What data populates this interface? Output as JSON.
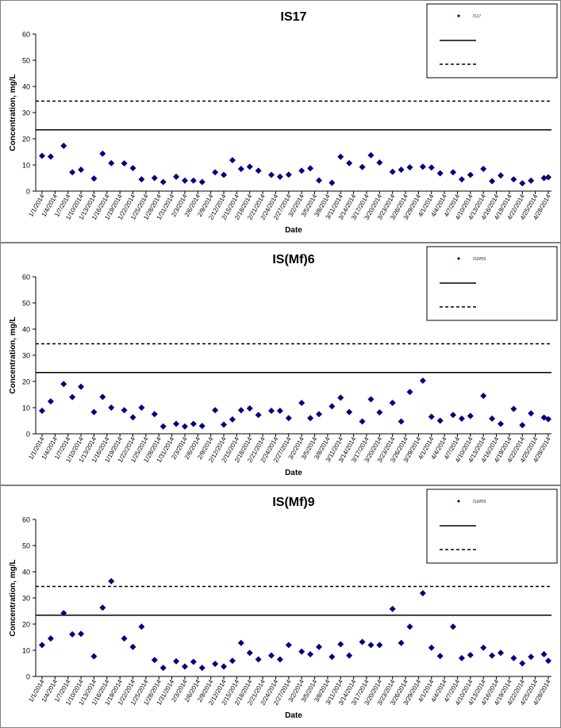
{
  "chart_data": [
    {
      "type": "scatter",
      "title": "IS17",
      "xlabel": "Date",
      "ylabel": "Concentration, mg/L",
      "ylim": [
        0,
        60
      ],
      "yticks": [
        0,
        10,
        20,
        30,
        40,
        50,
        60
      ],
      "xlim": [
        "1/1/2014",
        "4/28/2014"
      ],
      "xticks": [
        "1/1/2014",
        "1/4/2014",
        "1/7/2014",
        "1/10/2014",
        "1/13/2014",
        "1/16/2014",
        "1/19/2014",
        "1/22/2014",
        "1/25/2014",
        "1/28/2014",
        "1/31/2014",
        "2/3/2014",
        "2/6/2014",
        "2/9/2014",
        "2/12/2014",
        "2/15/2014",
        "2/18/2014",
        "2/21/2014",
        "2/24/2014",
        "2/27/2014",
        "3/2/2014",
        "3/5/2014",
        "3/8/2014",
        "3/11/2014",
        "3/14/2014",
        "3/17/2014",
        "3/20/2014",
        "3/23/2014",
        "3/26/2014",
        "3/29/2014",
        "4/1/2014",
        "4/4/2014",
        "4/7/2014",
        "4/10/2014",
        "4/13/2014",
        "4/16/2014",
        "4/19/2014",
        "4/22/2014",
        "4/25/2014",
        "4/28/2014"
      ],
      "series": [
        {
          "name": "IS17",
          "color": "#000080",
          "x": [
            "1/1/2014",
            "1/3/2014",
            "1/6/2014",
            "1/8/2014",
            "1/10/2014",
            "1/13/2014",
            "1/15/2014",
            "1/17/2014",
            "1/20/2014",
            "1/22/2014",
            "1/24/2014",
            "1/27/2014",
            "1/29/2014",
            "2/1/2014",
            "2/3/2014",
            "2/5/2014",
            "2/7/2014",
            "2/10/2014",
            "2/12/2014",
            "2/14/2014",
            "2/16/2014",
            "2/18/2014",
            "2/20/2014",
            "2/23/2014",
            "2/25/2014",
            "2/27/2014",
            "3/2/2014",
            "3/4/2014",
            "3/6/2014",
            "3/9/2014",
            "3/11/2014",
            "3/13/2014",
            "3/16/2014",
            "3/18/2014",
            "3/20/2014",
            "3/23/2014",
            "3/25/2014",
            "3/27/2014",
            "3/30/2014",
            "4/1/2014",
            "4/3/2014",
            "4/6/2014",
            "4/8/2014",
            "4/10/2014",
            "4/13/2014",
            "4/15/2014",
            "4/17/2014",
            "4/20/2014",
            "4/22/2014",
            "4/24/2014",
            "4/27/2014",
            "4/28/2014"
          ],
          "values": [
            13.5,
            13.2,
            17.3,
            7.2,
            8.2,
            4.8,
            14.3,
            10.7,
            10.6,
            8.8,
            4.5,
            5,
            3.5,
            5.5,
            4,
            4,
            3.5,
            7.2,
            6.2,
            11.8,
            8.5,
            9.3,
            7.8,
            6.2,
            5.5,
            6.3,
            7.8,
            8.7,
            4.1,
            3.2,
            13.1,
            10.7,
            9.2,
            13.7,
            10.9,
            7.4,
            8.2,
            9.1,
            9.3,
            9,
            6.8,
            7.2,
            4.5,
            6.2,
            8.5,
            3.8,
            6,
            4.5,
            3,
            4,
            5,
            5.3
          ]
        }
      ],
      "hlines": [
        {
          "value": 23.4,
          "style": "solid"
        },
        {
          "value": 34.4,
          "style": "dashed"
        }
      ]
    },
    {
      "type": "scatter",
      "title": "IS(Mf)6",
      "xlabel": "Date",
      "ylabel": "Concentration, mg/L",
      "ylim": [
        0,
        60
      ],
      "yticks": [
        0,
        10,
        20,
        30,
        40,
        50,
        60
      ],
      "xlim": [
        "1/1/2014",
        "4/28/2014"
      ],
      "xticks": [
        "1/1/2014",
        "1/4/2014",
        "1/7/2014",
        "1/10/2014",
        "1/13/2014",
        "1/16/2014",
        "1/19/2014",
        "1/22/2014",
        "1/25/2014",
        "1/28/2014",
        "1/31/2014",
        "2/3/2014",
        "2/6/2014",
        "2/9/2014",
        "2/12/2014",
        "2/15/2014",
        "2/18/2014",
        "2/21/2014",
        "2/24/2014",
        "2/27/2014",
        "3/2/2014",
        "3/5/2014",
        "3/8/2014",
        "3/11/2014",
        "3/14/2014",
        "3/17/2014",
        "3/20/2014",
        "3/23/2014",
        "3/26/2014",
        "3/29/2014",
        "4/1/2014",
        "4/4/2014",
        "4/7/2014",
        "4/10/2014",
        "4/13/2014",
        "4/16/2014",
        "4/19/2014",
        "4/22/2014",
        "4/25/2014",
        "4/28/2014"
      ],
      "series": [
        {
          "name": "IS(Mf)6",
          "color": "#000080",
          "x": [
            "1/1/2014",
            "1/3/2014",
            "1/6/2014",
            "1/8/2014",
            "1/10/2014",
            "1/13/2014",
            "1/15/2014",
            "1/17/2014",
            "1/20/2014",
            "1/22/2014",
            "1/24/2014",
            "1/27/2014",
            "1/29/2014",
            "2/1/2014",
            "2/3/2014",
            "2/5/2014",
            "2/7/2014",
            "2/10/2014",
            "2/12/2014",
            "2/14/2014",
            "2/16/2014",
            "2/18/2014",
            "2/20/2014",
            "2/23/2014",
            "2/25/2014",
            "2/27/2014",
            "3/2/2014",
            "3/4/2014",
            "3/6/2014",
            "3/9/2014",
            "3/11/2014",
            "3/13/2014",
            "3/16/2014",
            "3/18/2014",
            "3/20/2014",
            "3/23/2014",
            "3/25/2014",
            "3/27/2014",
            "3/30/2014",
            "4/1/2014",
            "4/3/2014",
            "4/6/2014",
            "4/8/2014",
            "4/10/2014",
            "4/13/2014",
            "4/15/2014",
            "4/17/2014",
            "4/20/2014",
            "4/22/2014",
            "4/24/2014",
            "4/27/2014",
            "4/28/2014"
          ],
          "values": [
            8.8,
            12.4,
            19,
            14,
            18,
            8.3,
            14.1,
            10,
            9,
            6.3,
            10,
            7.5,
            2.8,
            3.8,
            2.8,
            3.8,
            3,
            9,
            3.5,
            5.5,
            9,
            9.7,
            7.2,
            8.8,
            8.8,
            6,
            11.8,
            6,
            7.5,
            10.5,
            13.8,
            8.3,
            4.7,
            13.2,
            8.2,
            11.8,
            4.7,
            16,
            20.3,
            6.5,
            5,
            7.2,
            5.8,
            6.8,
            14.5,
            5.8,
            3.8,
            9.5,
            3.3,
            7.8,
            6.2,
            5.6
          ]
        }
      ],
      "hlines": [
        {
          "value": 23.4,
          "style": "solid"
        },
        {
          "value": 34.4,
          "style": "dashed"
        }
      ]
    },
    {
      "type": "scatter",
      "title": "IS(Mf)9",
      "xlabel": "Date",
      "ylabel": "Concentration, mg/L",
      "ylim": [
        0,
        60
      ],
      "yticks": [
        0,
        10,
        20,
        30,
        40,
        50,
        60
      ],
      "xlim": [
        "1/1/2014",
        "4/28/2014"
      ],
      "xticks": [
        "1/1/2014",
        "1/4/2014",
        "1/7/2014",
        "1/10/2014",
        "1/13/2014",
        "1/16/2014",
        "1/19/2014",
        "1/22/2014",
        "1/25/2014",
        "1/28/2014",
        "1/31/2014",
        "2/3/2014",
        "2/6/2014",
        "2/9/2014",
        "2/12/2014",
        "2/15/2014",
        "2/18/2014",
        "2/21/2014",
        "2/24/2014",
        "2/27/2014",
        "3/2/2014",
        "3/5/2014",
        "3/8/2014",
        "3/11/2014",
        "3/14/2014",
        "3/17/2014",
        "3/20/2014",
        "3/23/2014",
        "3/26/2014",
        "3/29/2014",
        "4/1/2014",
        "4/4/2014",
        "4/7/2014",
        "4/10/2014",
        "4/13/2014",
        "4/16/2014",
        "4/19/2014",
        "4/22/2014",
        "4/25/2014",
        "4/28/2014"
      ],
      "series": [
        {
          "name": "IS(Mf)9",
          "color": "#000080",
          "x": [
            "1/1/2014",
            "1/3/2014",
            "1/6/2014",
            "1/8/2014",
            "1/10/2014",
            "1/13/2014",
            "1/15/2014",
            "1/17/2014",
            "1/20/2014",
            "1/22/2014",
            "1/24/2014",
            "1/27/2014",
            "1/29/2014",
            "2/1/2014",
            "2/3/2014",
            "2/5/2014",
            "2/7/2014",
            "2/10/2014",
            "2/12/2014",
            "2/14/2014",
            "2/16/2014",
            "2/18/2014",
            "2/20/2014",
            "2/23/2014",
            "2/25/2014",
            "2/27/2014",
            "3/2/2014",
            "3/4/2014",
            "3/6/2014",
            "3/9/2014",
            "3/11/2014",
            "3/13/2014",
            "3/16/2014",
            "3/18/2014",
            "3/20/2014",
            "3/23/2014",
            "3/25/2014",
            "3/27/2014",
            "3/30/2014",
            "4/1/2014",
            "4/3/2014",
            "4/6/2014",
            "4/8/2014",
            "4/10/2014",
            "4/13/2014",
            "4/15/2014",
            "4/17/2014",
            "4/20/2014",
            "4/22/2014",
            "4/24/2014",
            "4/27/2014",
            "4/28/2014"
          ],
          "values": [
            12,
            14.5,
            24.2,
            16.1,
            16.3,
            7.7,
            26.3,
            36.4,
            14.5,
            11.3,
            19,
            6.3,
            3.3,
            5.8,
            3.8,
            5.6,
            3.3,
            4.8,
            3.8,
            6,
            12.8,
            9,
            6.5,
            8,
            6.5,
            12,
            9.5,
            8.5,
            11.3,
            7.5,
            12.3,
            8,
            13.2,
            12,
            12,
            25.8,
            12.8,
            19,
            31.8,
            11,
            7.8,
            19,
            7,
            8.2,
            11,
            8,
            9,
            7,
            5,
            7.5,
            8.5,
            6
          ]
        }
      ],
      "hlines": [
        {
          "value": 23.4,
          "style": "solid"
        },
        {
          "value": 34.4,
          "style": "dashed"
        }
      ]
    }
  ]
}
